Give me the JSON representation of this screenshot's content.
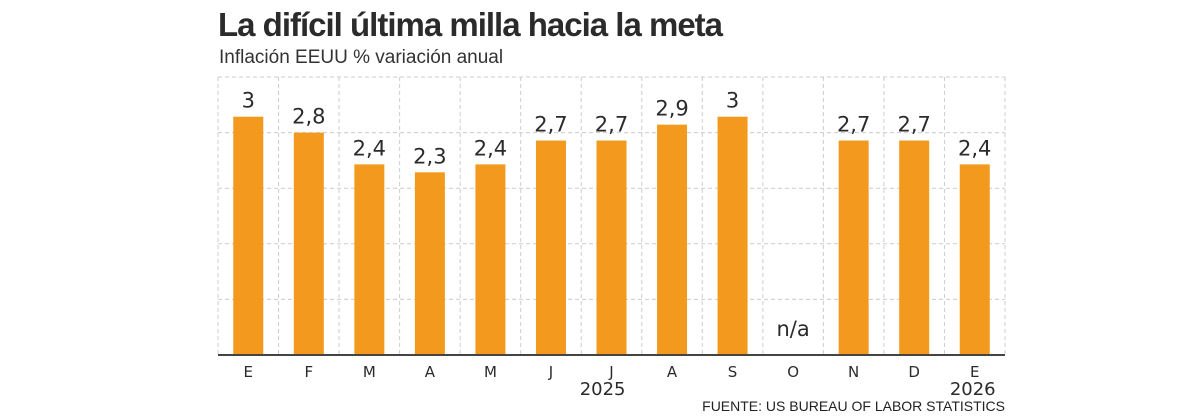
{
  "chart_data": {
    "type": "bar",
    "title": "La difícil última milla hacia la meta",
    "subtitle": "Inflación EEUU % variación anual",
    "source": "FUENTE: US BUREAU OF LABOR STATISTICS",
    "categories": [
      "E",
      "F",
      "M",
      "A",
      "M",
      "J",
      "J",
      "A",
      "S",
      "O",
      "N",
      "D",
      "E"
    ],
    "values": [
      3,
      2.8,
      2.4,
      2.3,
      2.4,
      2.7,
      2.7,
      2.9,
      3,
      null,
      2.7,
      2.7,
      2.4
    ],
    "value_labels": [
      "3",
      "2,8",
      "2,4",
      "2,3",
      "2,4",
      "2,7",
      "2,7",
      "2,9",
      "3",
      "n/a",
      "2,7",
      "2,7",
      "2,4"
    ],
    "year_labels": [
      {
        "index": 6,
        "label": "2025"
      },
      {
        "index": 12,
        "label": "2026"
      }
    ],
    "xlabel": "",
    "ylabel": "",
    "ylim": [
      0,
      3.5
    ],
    "grid": true,
    "bar_color": "#f39a1e"
  }
}
